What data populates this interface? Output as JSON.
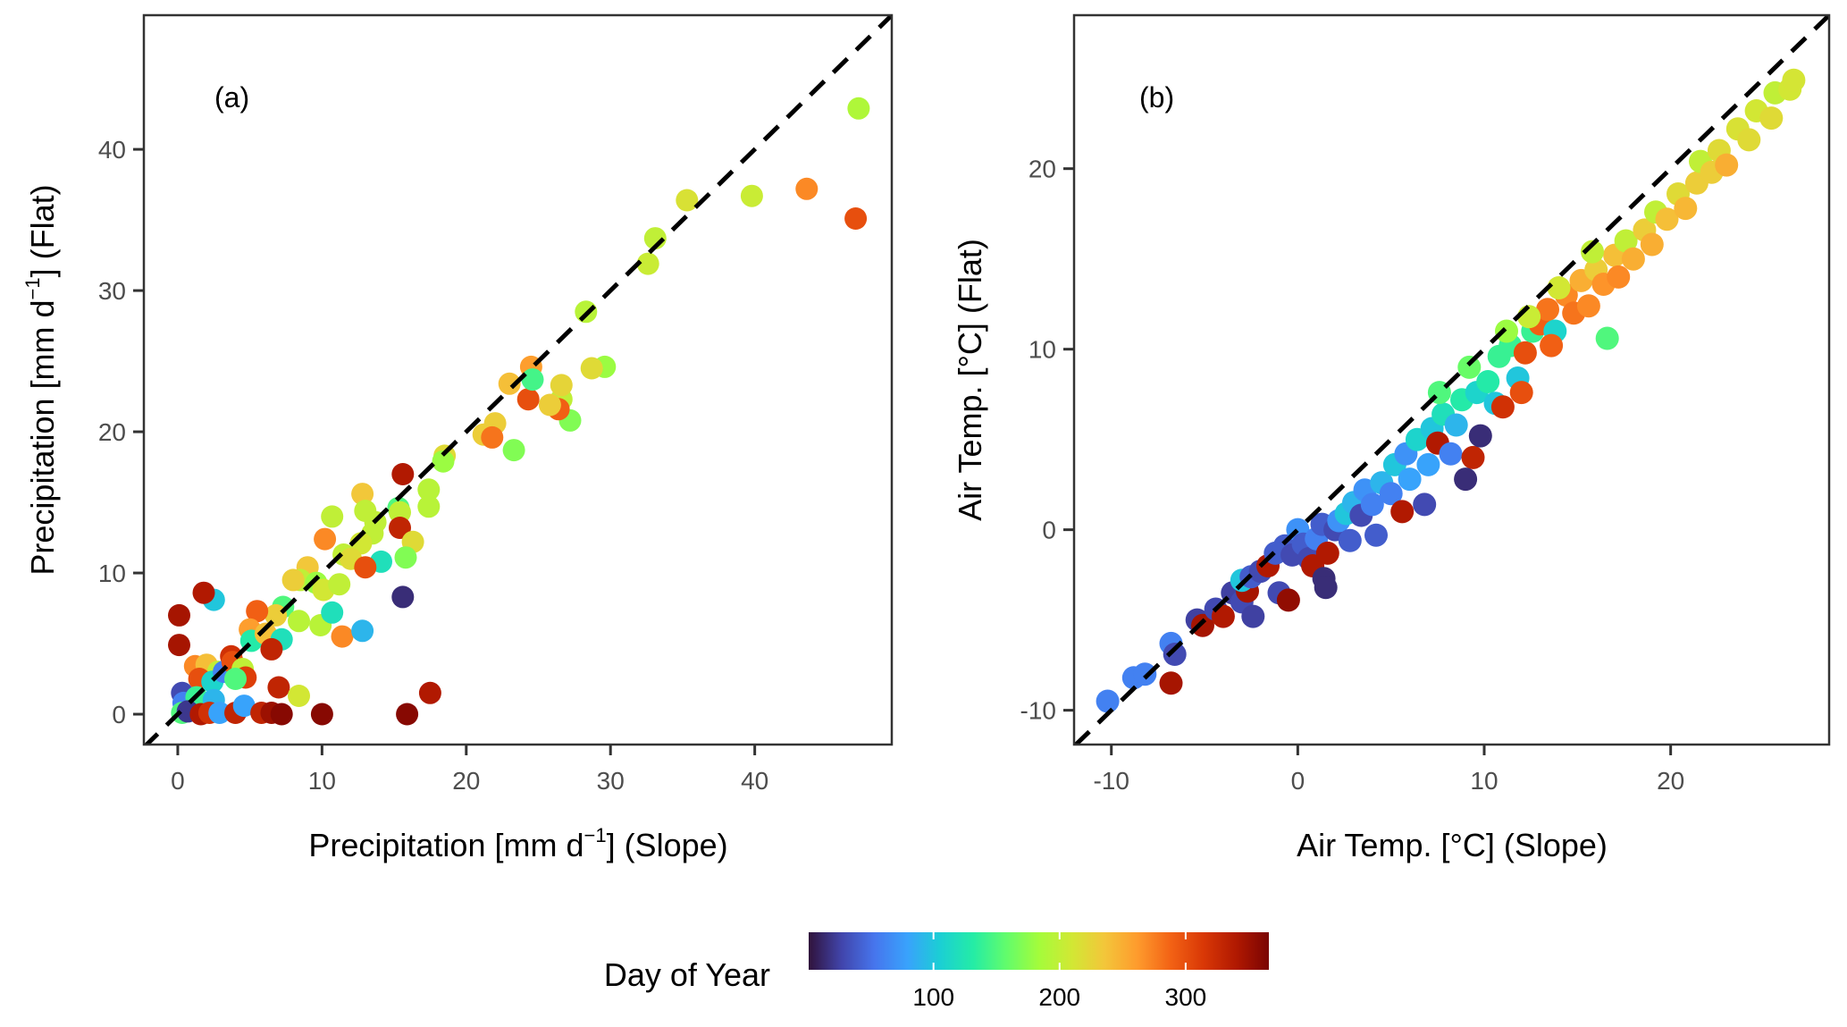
{
  "chart_data": [
    {
      "type": "scatter",
      "panel_label": "(a)",
      "xlabel": "Precipitation [mm d",
      "xlabel_sup": "−1",
      "xlabel_suffix": "] (Slope)",
      "ylabel": "Precipitation [mm d",
      "ylabel_sup": "−1",
      "ylabel_suffix": "] (Flat)",
      "xlim": [
        -2.35,
        49.5
      ],
      "ylim": [
        -2.15,
        49.5
      ],
      "xticks": [
        0,
        10,
        20,
        30,
        40
      ],
      "yticks": [
        0,
        10,
        20,
        30,
        40
      ],
      "reference_line": "1:1 dashed",
      "grid": false,
      "color_by": "Day of Year",
      "points": [
        [
          47.2,
          42.9,
          190
        ],
        [
          47.0,
          35.1,
          300
        ],
        [
          43.6,
          37.2,
          270
        ],
        [
          39.8,
          36.7,
          205
        ],
        [
          35.3,
          36.4,
          215
        ],
        [
          33.1,
          33.7,
          200
        ],
        [
          32.6,
          31.9,
          205
        ],
        [
          28.3,
          28.5,
          195
        ],
        [
          29.6,
          24.6,
          180
        ],
        [
          28.7,
          24.5,
          220
        ],
        [
          27.2,
          20.8,
          170
        ],
        [
          26.6,
          22.3,
          200
        ],
        [
          26.6,
          23.3,
          225
        ],
        [
          26.4,
          21.6,
          290
        ],
        [
          25.8,
          21.9,
          230
        ],
        [
          24.3,
          22.3,
          300
        ],
        [
          24.5,
          24.6,
          260
        ],
        [
          24.6,
          23.7,
          145
        ],
        [
          23.0,
          23.4,
          240
        ],
        [
          23.3,
          18.7,
          170
        ],
        [
          22.0,
          20.6,
          230
        ],
        [
          21.2,
          19.8,
          230
        ],
        [
          21.8,
          19.6,
          280
        ],
        [
          18.5,
          18.3,
          220
        ],
        [
          18.4,
          17.9,
          180
        ],
        [
          17.4,
          15.9,
          195
        ],
        [
          17.4,
          14.7,
          195
        ],
        [
          15.6,
          17.0,
          340
        ],
        [
          15.3,
          14.6,
          150
        ],
        [
          15.4,
          14.3,
          200
        ],
        [
          15.4,
          13.2,
          330
        ],
        [
          16.3,
          12.2,
          220
        ],
        [
          15.8,
          11.1,
          170
        ],
        [
          12.8,
          15.6,
          235
        ],
        [
          13.0,
          14.4,
          200
        ],
        [
          13.7,
          13.6,
          200
        ],
        [
          13.5,
          12.8,
          200
        ],
        [
          12.7,
          12.1,
          210
        ],
        [
          10.7,
          14.0,
          200
        ],
        [
          10.2,
          12.4,
          270
        ],
        [
          11.5,
          11.3,
          200
        ],
        [
          12.0,
          11.0,
          220
        ],
        [
          14.1,
          10.8,
          120
        ],
        [
          13.0,
          10.4,
          300
        ],
        [
          9.0,
          10.4,
          235
        ],
        [
          8.5,
          9.5,
          200
        ],
        [
          9.6,
          9.3,
          180
        ],
        [
          10.1,
          8.8,
          210
        ],
        [
          11.2,
          9.2,
          200
        ],
        [
          8.0,
          9.5,
          230
        ],
        [
          7.3,
          7.6,
          150
        ],
        [
          9.9,
          6.3,
          195
        ],
        [
          10.7,
          7.2,
          120
        ],
        [
          11.4,
          5.5,
          270
        ],
        [
          12.8,
          5.9,
          90
        ],
        [
          8.4,
          6.6,
          195
        ],
        [
          6.8,
          7.0,
          230
        ],
        [
          5.5,
          7.3,
          290
        ],
        [
          5.0,
          6.0,
          260
        ],
        [
          5.1,
          5.2,
          130
        ],
        [
          6.1,
          5.7,
          240
        ],
        [
          7.2,
          5.3,
          120
        ],
        [
          6.5,
          4.6,
          330
        ],
        [
          2.5,
          8.1,
          100
        ],
        [
          1.8,
          8.6,
          340
        ],
        [
          0.1,
          7.0,
          345
        ],
        [
          0.1,
          4.9,
          345
        ],
        [
          1.2,
          3.4,
          270
        ],
        [
          2.0,
          3.5,
          240
        ],
        [
          2.8,
          3.0,
          200
        ],
        [
          1.5,
          2.5,
          300
        ],
        [
          2.4,
          2.3,
          110
        ],
        [
          3.7,
          4.1,
          320
        ],
        [
          3.2,
          3.0,
          60
        ],
        [
          3.8,
          3.7,
          300
        ],
        [
          4.5,
          3.2,
          200
        ],
        [
          4.7,
          2.6,
          310
        ],
        [
          4.0,
          2.5,
          150
        ],
        [
          0.3,
          1.5,
          30
        ],
        [
          0.4,
          0.8,
          60
        ],
        [
          1.3,
          1.2,
          140
        ],
        [
          2.5,
          1.0,
          90
        ],
        [
          0.3,
          0.1,
          150
        ],
        [
          0.7,
          0.2,
          20
        ],
        [
          1.6,
          0.0,
          340
        ],
        [
          2.2,
          0.1,
          320
        ],
        [
          2.9,
          0.1,
          80
        ],
        [
          4.0,
          0.1,
          330
        ],
        [
          4.6,
          0.6,
          80
        ],
        [
          5.8,
          0.1,
          330
        ],
        [
          6.5,
          0.1,
          350
        ],
        [
          7.2,
          0.0,
          360
        ],
        [
          10.0,
          0.0,
          360
        ],
        [
          15.9,
          0.0,
          360
        ],
        [
          17.5,
          1.5,
          340
        ],
        [
          7.0,
          1.9,
          330
        ],
        [
          8.4,
          1.3,
          210
        ],
        [
          15.6,
          8.3,
          15
        ]
      ]
    },
    {
      "type": "scatter",
      "panel_label": "(b)",
      "xlabel": "Air Temp. [°C] (Slope)",
      "ylabel": "Air Temp. [°C] (Flat)",
      "xlim": [
        -12,
        28.5
      ],
      "ylim": [
        -11.9,
        28.5
      ],
      "xticks": [
        -10,
        0,
        10,
        20
      ],
      "yticks": [
        -10,
        0,
        10,
        20
      ],
      "reference_line": "1:1 dashed",
      "grid": false,
      "color_by": "Day of Year",
      "points": [
        [
          -10.2,
          -9.5,
          60
        ],
        [
          -8.8,
          -8.2,
          60
        ],
        [
          -8.2,
          -8.0,
          60
        ],
        [
          -6.8,
          -6.3,
          60
        ],
        [
          -6.6,
          -6.9,
          30
        ],
        [
          -6.8,
          -8.5,
          345
        ],
        [
          -5.4,
          -5.0,
          25
        ],
        [
          -5.1,
          -5.3,
          345
        ],
        [
          -4.4,
          -4.4,
          30
        ],
        [
          -4.0,
          -4.8,
          340
        ],
        [
          -3.5,
          -3.5,
          25
        ],
        [
          -3.0,
          -4.0,
          30
        ],
        [
          -2.7,
          -3.4,
          345
        ],
        [
          -2.4,
          -4.8,
          25
        ],
        [
          -3.0,
          -2.8,
          100
        ],
        [
          -2.5,
          -2.6,
          40
        ],
        [
          -2.0,
          -2.3,
          30
        ],
        [
          -1.6,
          -2.0,
          340
        ],
        [
          -1.2,
          -1.3,
          40
        ],
        [
          -1.0,
          -3.5,
          30
        ],
        [
          -0.5,
          -3.9,
          355
        ],
        [
          -0.7,
          -0.9,
          40
        ],
        [
          -0.3,
          -1.4,
          30
        ],
        [
          0.0,
          0.0,
          70
        ],
        [
          0.3,
          -0.8,
          40
        ],
        [
          0.6,
          -1.6,
          30
        ],
        [
          0.8,
          -2.0,
          340
        ],
        [
          1.0,
          -0.5,
          60
        ],
        [
          1.4,
          -2.7,
          15
        ],
        [
          1.5,
          -3.2,
          15
        ],
        [
          1.6,
          -1.3,
          340
        ],
        [
          1.3,
          0.3,
          40
        ],
        [
          2.0,
          0.0,
          30
        ],
        [
          2.2,
          0.5,
          70
        ],
        [
          2.6,
          0.9,
          100
        ],
        [
          2.8,
          -0.6,
          40
        ],
        [
          3.0,
          1.5,
          90
        ],
        [
          3.4,
          0.8,
          30
        ],
        [
          3.6,
          2.2,
          70
        ],
        [
          4.0,
          1.4,
          60
        ],
        [
          4.2,
          -0.3,
          40
        ],
        [
          4.5,
          2.6,
          90
        ],
        [
          5.0,
          2.0,
          60
        ],
        [
          5.2,
          3.6,
          100
        ],
        [
          5.6,
          1.0,
          340
        ],
        [
          5.8,
          4.2,
          70
        ],
        [
          6.0,
          2.8,
          80
        ],
        [
          6.4,
          5.0,
          110
        ],
        [
          6.8,
          1.4,
          30
        ],
        [
          7.2,
          5.6,
          100
        ],
        [
          7.0,
          3.6,
          80
        ],
        [
          7.5,
          4.8,
          340
        ],
        [
          7.8,
          6.4,
          120
        ],
        [
          8.2,
          4.2,
          60
        ],
        [
          8.5,
          5.8,
          90
        ],
        [
          8.8,
          7.2,
          130
        ],
        [
          9.4,
          4.0,
          330
        ],
        [
          9.8,
          5.2,
          15
        ],
        [
          9.0,
          2.8,
          15
        ],
        [
          9.6,
          7.6,
          110
        ],
        [
          10.2,
          8.2,
          130
        ],
        [
          10.6,
          7.0,
          100
        ],
        [
          10.8,
          9.6,
          140
        ],
        [
          11.0,
          6.8,
          320
        ],
        [
          11.4,
          10.2,
          140
        ],
        [
          11.8,
          8.4,
          100
        ],
        [
          12.2,
          9.8,
          300
        ],
        [
          12.6,
          11.0,
          140
        ],
        [
          12.0,
          7.6,
          300
        ],
        [
          13.0,
          11.4,
          290
        ],
        [
          13.4,
          12.2,
          280
        ],
        [
          13.8,
          11.0,
          110
        ],
        [
          13.6,
          10.2,
          290
        ],
        [
          14.4,
          13.0,
          270
        ],
        [
          14.8,
          12.0,
          280
        ],
        [
          15.2,
          13.8,
          250
        ],
        [
          15.6,
          12.4,
          270
        ],
        [
          16.0,
          14.4,
          230
        ],
        [
          16.4,
          13.6,
          265
        ],
        [
          16.6,
          10.6,
          150
        ],
        [
          17.0,
          15.2,
          240
        ],
        [
          17.2,
          14.0,
          270
        ],
        [
          17.6,
          16.0,
          200
        ],
        [
          18.0,
          15.0,
          250
        ],
        [
          18.6,
          16.6,
          230
        ],
        [
          19.2,
          17.6,
          200
        ],
        [
          19.0,
          15.8,
          250
        ],
        [
          19.8,
          17.2,
          240
        ],
        [
          20.4,
          18.6,
          220
        ],
        [
          20.8,
          17.8,
          245
        ],
        [
          21.4,
          19.2,
          230
        ],
        [
          21.6,
          20.4,
          200
        ],
        [
          22.2,
          19.8,
          230
        ],
        [
          22.6,
          21.0,
          220
        ],
        [
          23.0,
          20.2,
          250
        ],
        [
          23.6,
          22.2,
          215
        ],
        [
          24.2,
          21.6,
          220
        ],
        [
          24.6,
          23.2,
          210
        ],
        [
          25.4,
          22.8,
          220
        ],
        [
          25.6,
          24.2,
          200
        ],
        [
          26.4,
          24.4,
          210
        ],
        [
          26.6,
          24.9,
          212
        ],
        [
          12.4,
          11.8,
          205
        ],
        [
          14.0,
          13.4,
          210
        ],
        [
          15.8,
          15.4,
          200
        ],
        [
          11.2,
          11.0,
          180
        ],
        [
          9.2,
          9.0,
          160
        ],
        [
          7.6,
          7.6,
          150
        ]
      ]
    }
  ],
  "colorbar": {
    "title": "Day of Year",
    "min": 1,
    "max": 366,
    "ticks": [
      100,
      200,
      300
    ],
    "colormap": "turbo"
  },
  "colors": {
    "turbo_stops": [
      "#30123b",
      "#4145ab",
      "#4675ed",
      "#39a2fc",
      "#1bcfd4",
      "#24eca6",
      "#61fc6c",
      "#a4fc3b",
      "#d1e834",
      "#f3c63a",
      "#fe9b2d",
      "#f36315",
      "#d93806",
      "#b11901",
      "#7a0402"
    ],
    "reference_line": "#000000",
    "tick_label": "#4d4d4d"
  }
}
